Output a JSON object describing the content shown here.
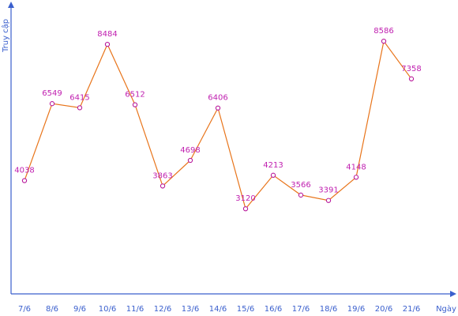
{
  "chart_data": {
    "type": "line",
    "xlabel": "Ngày",
    "ylabel": "Truy cập",
    "categories": [
      "7/6",
      "8/6",
      "9/6",
      "10/6",
      "11/6",
      "12/6",
      "13/6",
      "14/6",
      "15/6",
      "16/6",
      "17/6",
      "18/6",
      "19/6",
      "20/6",
      "21/6"
    ],
    "series": [
      {
        "values": [
          4038,
          6549,
          6415,
          8484,
          6512,
          3863,
          4698,
          6406,
          3120,
          4213,
          3566,
          3391,
          4148,
          8586,
          7358
        ],
        "labels": [
          "4038",
          "6549",
          "6415",
          "8484",
          "6512",
          "3863",
          "4698",
          "6406",
          "3120",
          "4213",
          "3566",
          "3391",
          "4148",
          "8586",
          "7358"
        ]
      }
    ],
    "grid": false,
    "colors": {
      "axis": "#3a5fcd",
      "line": "#e8741a",
      "marker": "#b8189b",
      "label": "#c020b0"
    }
  }
}
